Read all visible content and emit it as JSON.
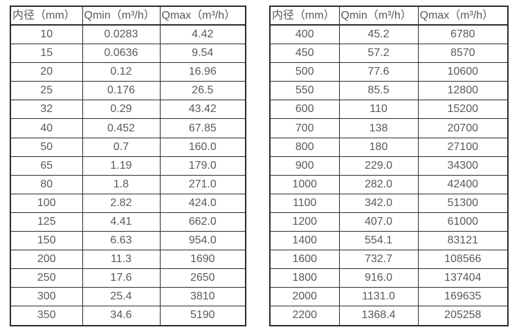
{
  "colors": {
    "table_border": "#2a2a2a",
    "text": "#595959",
    "background": "#ffffff"
  },
  "chart_data": [
    {
      "type": "table",
      "name": "flow-rates-dn10-dn350",
      "columns": [
        "内径（mm）",
        "Qmin（m³/h）",
        "Qmax（m³/h）"
      ],
      "rows": [
        [
          "10",
          "0.0283",
          "4.42"
        ],
        [
          "15",
          "0.0636",
          "9.54"
        ],
        [
          "20",
          "0.12",
          "16.96"
        ],
        [
          "25",
          "0.176",
          "26.5"
        ],
        [
          "32",
          "0.29",
          "43.42"
        ],
        [
          "40",
          "0.452",
          "67.85"
        ],
        [
          "50",
          "0.7",
          "160.0"
        ],
        [
          "65",
          "1.19",
          "179.0"
        ],
        [
          "80",
          "1.8",
          "271.0"
        ],
        [
          "100",
          "2.82",
          "424.0"
        ],
        [
          "125",
          "4.41",
          "662.0"
        ],
        [
          "150",
          "6.63",
          "954.0"
        ],
        [
          "200",
          "11.3",
          "1690"
        ],
        [
          "250",
          "17.6",
          "2650"
        ],
        [
          "300",
          "25.4",
          "3810"
        ],
        [
          "350",
          "34.6",
          "5190"
        ]
      ]
    },
    {
      "type": "table",
      "name": "flow-rates-dn400-dn2200",
      "columns": [
        "内径（mm）",
        "Qmin（m³/h）",
        "Qmax（m³/h）"
      ],
      "rows": [
        [
          "400",
          "45.2",
          "6780"
        ],
        [
          "450",
          "57.2",
          "8570"
        ],
        [
          "500",
          "77.6",
          "10600"
        ],
        [
          "550",
          "85.5",
          "12800"
        ],
        [
          "600",
          "110",
          "15200"
        ],
        [
          "700",
          "138",
          "20700"
        ],
        [
          "800",
          "180",
          "27100"
        ],
        [
          "900",
          "229.0",
          "34300"
        ],
        [
          "1000",
          "282.0",
          "42400"
        ],
        [
          "1100",
          "342.0",
          "51300"
        ],
        [
          "1200",
          "407.0",
          "61000"
        ],
        [
          "1400",
          "554.1",
          "83121"
        ],
        [
          "1600",
          "732.7",
          "108566"
        ],
        [
          "1800",
          "916.0",
          "137404"
        ],
        [
          "2000",
          "1131.0",
          "169635"
        ],
        [
          "2200",
          "1368.4",
          "205258"
        ]
      ]
    }
  ]
}
